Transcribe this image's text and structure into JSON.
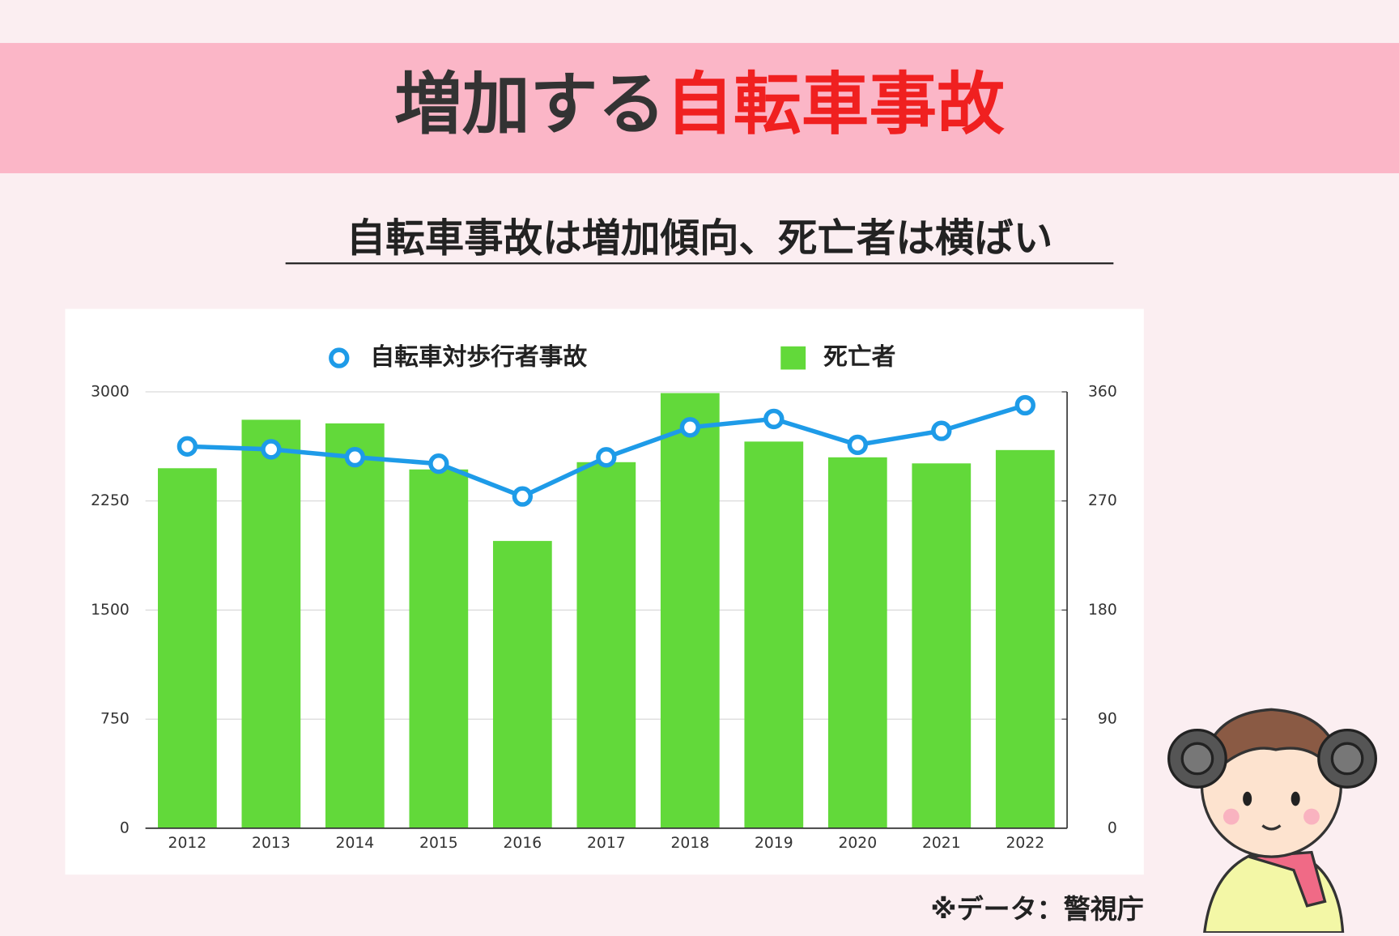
{
  "header": {
    "title_main": "増加する",
    "title_highlight": "自転車事故"
  },
  "subtitle": "自転車事故は増加傾向、死亡者は横ばい",
  "source": "※データ：警視庁",
  "chart_data": {
    "type": "bar",
    "categories": [
      "2012",
      "2013",
      "2014",
      "2015",
      "2016",
      "2017",
      "2018",
      "2019",
      "2020",
      "2021",
      "2022"
    ],
    "series": [
      {
        "name": "自転車対歩行者事故",
        "type": "line",
        "color": "#1e9be8",
        "axis": "y",
        "values": [
          2625,
          2605,
          2551,
          2506,
          2281,
          2550,
          2756,
          2814,
          2636,
          2732,
          2908
        ]
      },
      {
        "name": "死亡者",
        "type": "bar",
        "color": "#62d93a",
        "axis": "y2",
        "values": [
          297,
          337,
          334,
          296,
          237,
          302,
          359,
          319,
          306,
          301,
          312
        ]
      }
    ],
    "ylim": [
      0,
      3000
    ],
    "yticks": [
      0,
      750,
      1500,
      2250,
      3000
    ],
    "y2lim": [
      0,
      360
    ],
    "y2ticks": [
      0,
      90,
      180,
      270,
      360
    ],
    "grid": true,
    "legend": "top"
  }
}
